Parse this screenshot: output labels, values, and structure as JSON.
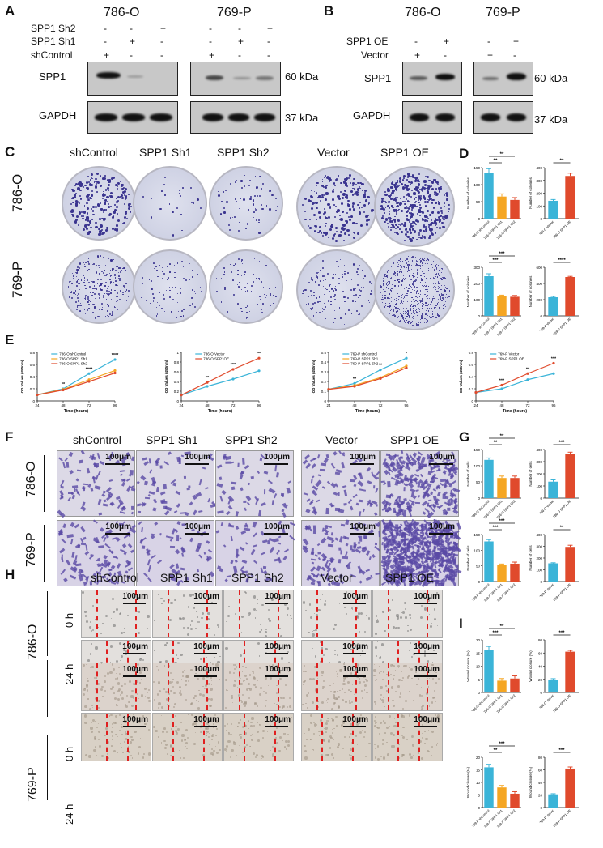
{
  "panels": {
    "A": "A",
    "B": "B",
    "C": "C",
    "D": "D",
    "E": "E",
    "F": "F",
    "G": "G",
    "H": "H",
    "I": "I"
  },
  "blotA": {
    "cell1": "786-O",
    "cell2": "769-P",
    "row_labels": [
      "SPP1 Sh2",
      "SPP1 Sh1",
      "shControl"
    ],
    "signs_786O": [
      [
        "-",
        "-",
        "+"
      ],
      [
        "-",
        "+",
        "-"
      ],
      [
        "+",
        "-",
        "-"
      ]
    ],
    "signs_769P": [
      [
        "-",
        "-",
        "+"
      ],
      [
        "-",
        "+",
        "-"
      ],
      [
        "+",
        "-",
        "-"
      ]
    ],
    "spp1": "SPP1",
    "gapdh": "GAPDH",
    "kda60": "60 kDa",
    "kda37": "37 kDa"
  },
  "blotB": {
    "cell1": "786-O",
    "cell2": "769-P",
    "row_labels": [
      "SPP1 OE",
      "Vector"
    ],
    "signs_786O": [
      [
        "-",
        "+"
      ],
      [
        "+",
        "-"
      ]
    ],
    "signs_769P": [
      [
        "-",
        "+"
      ],
      [
        "+",
        "-"
      ]
    ],
    "spp1": "SPP1",
    "gapdh": "GAPDH",
    "kda60": "60 kDa",
    "kda37": "37 kDa"
  },
  "colony": {
    "headers": [
      "shControl",
      "SPP1 Sh1",
      "SPP1 Sh2",
      "Vector",
      "SPP1 OE"
    ],
    "rows": [
      "786-O",
      "769-P"
    ]
  },
  "transwell": {
    "headers": [
      "shControl",
      "SPP1 Sh1",
      "SPP1 Sh2",
      "Vector",
      "SPP1 OE"
    ],
    "rows": [
      "786-O",
      "769-P"
    ],
    "scale": "100μm"
  },
  "wound": {
    "headers": [
      "shControl",
      "SPP1 Sh1",
      "SPP1 Sh2",
      "Vector",
      "SPP1 OE"
    ],
    "rows": [
      "786-O",
      "769-P"
    ],
    "times": [
      "0 h",
      "24 h"
    ],
    "scale": "100μm"
  },
  "colors": {
    "blue": "#3bb4d8",
    "orange": "#f5a623",
    "red": "#e04a2c",
    "purple": "#4b3f96"
  },
  "chart_data": [
    {
      "id": "D1",
      "type": "bar",
      "ylabel": "Number of colonies",
      "categories": [
        "786-O shControl",
        "786-O SPP1 Sh1",
        "786-O SPP1 Sh2"
      ],
      "values": [
        135,
        65,
        55
      ],
      "errors": [
        12,
        8,
        7
      ],
      "ylim": [
        0,
        150
      ],
      "yticks": [
        0,
        50,
        100,
        150
      ],
      "sig": [
        "**",
        "**"
      ]
    },
    {
      "id": "D2",
      "type": "bar",
      "ylabel": "Number of colonies",
      "categories": [
        "786-O Vector",
        "786-O SPP1 OE"
      ],
      "values": [
        140,
        335
      ],
      "errors": [
        10,
        22
      ],
      "ylim": [
        0,
        400
      ],
      "yticks": [
        0,
        100,
        200,
        300,
        400
      ],
      "sig": [
        "**"
      ]
    },
    {
      "id": "D3",
      "type": "bar",
      "ylabel": "Number of colonies",
      "categories": [
        "769-P shControl",
        "769-P SPP1 Sh1",
        "769-P SPP1 Sh2"
      ],
      "values": [
        245,
        120,
        118
      ],
      "errors": [
        15,
        8,
        8
      ],
      "ylim": [
        0,
        300
      ],
      "yticks": [
        0,
        100,
        200,
        300
      ],
      "sig": [
        "***",
        "***"
      ]
    },
    {
      "id": "D4",
      "type": "bar",
      "ylabel": "Number of colonies",
      "categories": [
        "769-P Vector",
        "769-P SPP1 OE"
      ],
      "values": [
        230,
        480
      ],
      "errors": [
        10,
        8
      ],
      "ylim": [
        0,
        600
      ],
      "yticks": [
        0,
        200,
        400,
        600
      ],
      "sig": [
        "****"
      ]
    },
    {
      "id": "E1",
      "type": "line",
      "ylabel": "OD Values (450nm)",
      "xlabel": "Time (hours)",
      "x": [
        24,
        48,
        72,
        96
      ],
      "ylim": [
        0,
        0.8
      ],
      "yticks": [
        0,
        0.2,
        0.4,
        0.6,
        0.8
      ],
      "series": [
        {
          "name": "786-O shControl",
          "values": [
            0.1,
            0.2,
            0.45,
            0.68
          ]
        },
        {
          "name": "786-O SPP1 Sh1",
          "values": [
            0.1,
            0.19,
            0.35,
            0.5
          ]
        },
        {
          "name": "786-O SPP1 Sh2",
          "values": [
            0.1,
            0.18,
            0.32,
            0.46
          ]
        }
      ],
      "sig": [
        "**",
        "****",
        "****"
      ]
    },
    {
      "id": "E2",
      "type": "line",
      "ylabel": "OD Values (450nm)",
      "xlabel": "Time (hours)",
      "x": [
        24,
        48,
        72,
        96
      ],
      "ylim": [
        0,
        1.0
      ],
      "yticks": [
        0,
        0.2,
        0.4,
        0.6,
        0.8,
        1.0
      ],
      "series": [
        {
          "name": "786-O Vector",
          "values": [
            0.12,
            0.3,
            0.45,
            0.62
          ]
        },
        {
          "name": "786-O SPP1OE",
          "values": [
            0.12,
            0.38,
            0.65,
            0.88
          ]
        }
      ],
      "sig": [
        "**",
        "***",
        "***"
      ]
    },
    {
      "id": "E3",
      "type": "line",
      "ylabel": "OD Values (450nm)",
      "xlabel": "Time (hours)",
      "x": [
        24,
        48,
        72,
        96
      ],
      "ylim": [
        0,
        0.5
      ],
      "yticks": [
        0,
        0.1,
        0.2,
        0.3,
        0.4,
        0.5
      ],
      "series": [
        {
          "name": "769-P shControl",
          "values": [
            0.12,
            0.18,
            0.32,
            0.44
          ]
        },
        {
          "name": "769-P SPP1 Sh1",
          "values": [
            0.12,
            0.16,
            0.24,
            0.36
          ]
        },
        {
          "name": "769-P SPP1 Sh2",
          "values": [
            0.12,
            0.15,
            0.23,
            0.34
          ]
        }
      ],
      "sig": [
        "**",
        "**",
        "*"
      ]
    },
    {
      "id": "E4",
      "type": "line",
      "ylabel": "OD Values (450nm)",
      "xlabel": "Time (hours)",
      "x": [
        24,
        48,
        72,
        96
      ],
      "ylim": [
        0,
        0.8
      ],
      "yticks": [
        0,
        0.2,
        0.4,
        0.6,
        0.8
      ],
      "series": [
        {
          "name": "769-P Vector",
          "values": [
            0.14,
            0.2,
            0.35,
            0.45
          ]
        },
        {
          "name": "769-P SPP1 OE",
          "values": [
            0.14,
            0.26,
            0.45,
            0.62
          ]
        }
      ],
      "sig": [
        "***",
        "**",
        "***"
      ]
    },
    {
      "id": "G1",
      "type": "bar",
      "ylabel": "Number of cells",
      "categories": [
        "786-O shControl",
        "786-O SPP1 Sh1",
        "786-O SPP1 Sh2"
      ],
      "values": [
        118,
        62,
        62
      ],
      "errors": [
        6,
        6,
        6
      ],
      "ylim": [
        0,
        150
      ],
      "yticks": [
        0,
        50,
        100,
        150
      ],
      "sig": [
        "**",
        "**"
      ]
    },
    {
      "id": "G2",
      "type": "bar",
      "ylabel": "Number of cells",
      "categories": [
        "786-O Vector",
        "786-O SPP1 OE"
      ],
      "values": [
        135,
        360
      ],
      "errors": [
        15,
        18
      ],
      "ylim": [
        0,
        400
      ],
      "yticks": [
        0,
        100,
        200,
        300,
        400
      ],
      "sig": [
        "***"
      ]
    },
    {
      "id": "G3",
      "type": "bar",
      "ylabel": "Number of cells",
      "categories": [
        "769-P shControl",
        "769-P SPP1 Sh1",
        "769-P SPP1 Sh2"
      ],
      "values": [
        128,
        52,
        57
      ],
      "errors": [
        6,
        4,
        5
      ],
      "ylim": [
        0,
        150
      ],
      "yticks": [
        0,
        50,
        100,
        150
      ],
      "sig": [
        "***",
        "***"
      ]
    },
    {
      "id": "G4",
      "type": "bar",
      "ylabel": "Number of cells",
      "categories": [
        "769-P Vector",
        "769-P SPP1 OE"
      ],
      "values": [
        155,
        295
      ],
      "errors": [
        5,
        14
      ],
      "ylim": [
        0,
        400
      ],
      "yticks": [
        0,
        100,
        200,
        300,
        400
      ],
      "sig": [
        "**"
      ]
    },
    {
      "id": "I1",
      "type": "bar",
      "ylabel": "Wound closure (%)",
      "categories": [
        "786-O shControl",
        "786-O SPP1 Sh1",
        "786-O SPP1 Sh2"
      ],
      "values": [
        16,
        4.5,
        5.3
      ],
      "errors": [
        1.5,
        0.8,
        1
      ],
      "ylim": [
        0,
        20
      ],
      "yticks": [
        0,
        5,
        10,
        15,
        20
      ],
      "sig": [
        "***",
        "**"
      ]
    },
    {
      "id": "I2",
      "type": "bar",
      "ylabel": "Wound closure (%)",
      "categories": [
        "786-O Vector",
        "786-O SPP1 OE"
      ],
      "values": [
        19,
        62
      ],
      "errors": [
        2,
        2
      ],
      "ylim": [
        0,
        80
      ],
      "yticks": [
        0,
        20,
        40,
        60,
        80
      ],
      "sig": [
        "***"
      ]
    },
    {
      "id": "I3",
      "type": "bar",
      "ylabel": "Wound closure (%)",
      "categories": [
        "769-P shControl",
        "769-P SPP1 Sh1",
        "769-P SPP1 Sh2"
      ],
      "values": [
        16,
        8,
        5.5
      ],
      "errors": [
        1.2,
        0.8,
        0.8
      ],
      "ylim": [
        0,
        20
      ],
      "yticks": [
        0,
        5,
        10,
        15,
        20
      ],
      "sig": [
        "**",
        "***"
      ]
    },
    {
      "id": "I4",
      "type": "bar",
      "ylabel": "Wound closure (%)",
      "categories": [
        "769-P Vector",
        "769-P SPP1 OE"
      ],
      "values": [
        21,
        62
      ],
      "errors": [
        1,
        2.5
      ],
      "ylim": [
        0,
        80
      ],
      "yticks": [
        0,
        20,
        40,
        60,
        80
      ],
      "sig": [
        "***"
      ]
    }
  ]
}
